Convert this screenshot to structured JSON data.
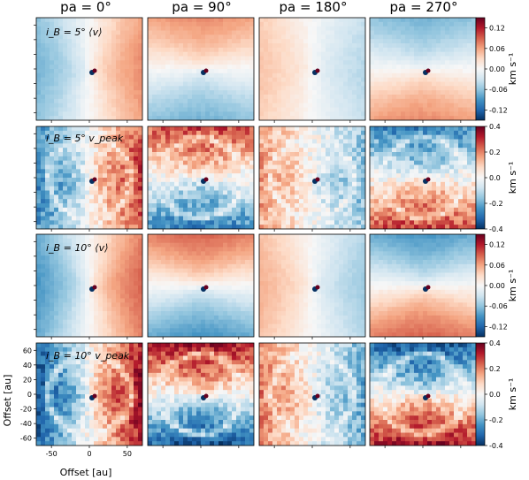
{
  "chart_data": {
    "type": "heatmap",
    "column_titles": [
      "pa = 0°",
      "pa = 90°",
      "pa = 180°",
      "pa = 270°"
    ],
    "rows": [
      {
        "label": "i_B = 5° ⟨v⟩",
        "colorbar": {
          "range": [
            -0.15,
            0.15
          ],
          "ticks": [
            "0.12",
            "0.06",
            "0.00",
            "-0.06",
            "-0.12"
          ],
          "tick_values": [
            0.12,
            0.06,
            0.0,
            -0.06,
            -0.12
          ],
          "label": "km s⁻¹"
        }
      },
      {
        "label": "i_B = 5° v_peak",
        "colorbar": {
          "range": [
            -0.4,
            0.4
          ],
          "ticks": [
            "0.4",
            "0.2",
            "0.0",
            "-0.2",
            "-0.4"
          ],
          "tick_values": [
            0.4,
            0.2,
            0.0,
            -0.2,
            -0.4
          ],
          "label": "km s⁻¹"
        }
      },
      {
        "label": "i_B = 10° ⟨v⟩",
        "colorbar": {
          "range": [
            -0.15,
            0.15
          ],
          "ticks": [
            "0.12",
            "0.06",
            "0.00",
            "-0.06",
            "-0.12"
          ],
          "tick_values": [
            0.12,
            0.06,
            0.0,
            -0.06,
            -0.12
          ],
          "label": "km s⁻¹"
        }
      },
      {
        "label": "i_B = 10° v_peak",
        "colorbar": {
          "range": [
            -0.4,
            0.4
          ],
          "ticks": [
            "0.4",
            "0.2",
            "0.0",
            "-0.2",
            "-0.4"
          ],
          "tick_values": [
            0.4,
            0.2,
            0.0,
            -0.2,
            -0.4
          ],
          "label": "km s⁻¹"
        }
      }
    ],
    "xlabel": "Offset [au]",
    "ylabel": "Offset [au]",
    "x_ticks": [
      -50,
      0,
      50
    ],
    "y_ticks": [
      60,
      40,
      20,
      0,
      -20,
      -40,
      -60
    ],
    "axis_range": [
      -70,
      70
    ],
    "colormap": [
      "#053061",
      "#2166ac",
      "#4393c3",
      "#92c5de",
      "#d1e5f0",
      "#f7f7f7",
      "#fddbc7",
      "#f4a582",
      "#d6604d",
      "#b2182b",
      "#67001f"
    ]
  }
}
